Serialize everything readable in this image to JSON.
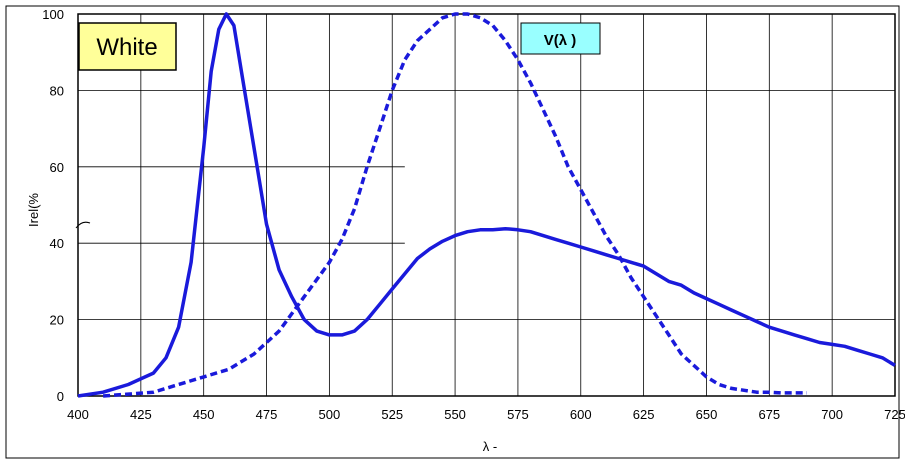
{
  "chart_data": {
    "type": "line",
    "title": "",
    "xlabel": "λ -",
    "ylabel": "Irel(%",
    "xlim": [
      400,
      725
    ],
    "ylim": [
      0,
      100
    ],
    "grid": true,
    "x_ticks": [
      "400",
      "425",
      "450",
      "475",
      "500",
      "525",
      "550",
      "575",
      "600",
      "625",
      "650",
      "675",
      "700",
      "725"
    ],
    "y_ticks": [
      "0",
      "20",
      "40",
      "60",
      "80",
      "100"
    ],
    "annotations": [
      {
        "text": "White",
        "color": "#ffff99"
      },
      {
        "text": "V(λ )",
        "color": "#99ffff"
      }
    ],
    "colors": {
      "line": "#1a1adb",
      "frame": "#000000",
      "grid": "#000000"
    },
    "series": [
      {
        "style": "solid",
        "points": [
          [
            400,
            0
          ],
          [
            410,
            1
          ],
          [
            420,
            3
          ],
          [
            430,
            6
          ],
          [
            435,
            10
          ],
          [
            440,
            18
          ],
          [
            445,
            35
          ],
          [
            450,
            65
          ],
          [
            453,
            85
          ],
          [
            456,
            96
          ],
          [
            459,
            100
          ],
          [
            462,
            97
          ],
          [
            465,
            85
          ],
          [
            470,
            65
          ],
          [
            475,
            45
          ],
          [
            480,
            33
          ],
          [
            485,
            26
          ],
          [
            490,
            20
          ],
          [
            495,
            17
          ],
          [
            500,
            16
          ],
          [
            505,
            16
          ],
          [
            510,
            17
          ],
          [
            515,
            20
          ],
          [
            520,
            24
          ],
          [
            525,
            28
          ],
          [
            530,
            32
          ],
          [
            535,
            36
          ],
          [
            540,
            38.5
          ],
          [
            545,
            40.5
          ],
          [
            550,
            42
          ],
          [
            555,
            43
          ],
          [
            560,
            43.5
          ],
          [
            565,
            43.5
          ],
          [
            570,
            43.8
          ],
          [
            575,
            43.5
          ],
          [
            580,
            43
          ],
          [
            585,
            42
          ],
          [
            590,
            41
          ],
          [
            595,
            40
          ],
          [
            600,
            39
          ],
          [
            605,
            38
          ],
          [
            610,
            37
          ],
          [
            615,
            36
          ],
          [
            620,
            35
          ],
          [
            625,
            34
          ],
          [
            630,
            32
          ],
          [
            635,
            30
          ],
          [
            640,
            29
          ],
          [
            645,
            27
          ],
          [
            650,
            25.5
          ],
          [
            655,
            24
          ],
          [
            660,
            22.5
          ],
          [
            665,
            21
          ],
          [
            670,
            19.5
          ],
          [
            675,
            18
          ],
          [
            680,
            17
          ],
          [
            685,
            16
          ],
          [
            690,
            15
          ],
          [
            695,
            14
          ],
          [
            700,
            13.5
          ],
          [
            705,
            13
          ],
          [
            710,
            12
          ],
          [
            715,
            11
          ],
          [
            720,
            10
          ],
          [
            725,
            8
          ]
        ]
      },
      {
        "style": "dashed",
        "points": [
          [
            410,
            0
          ],
          [
            420,
            0.5
          ],
          [
            430,
            1
          ],
          [
            440,
            3
          ],
          [
            450,
            5
          ],
          [
            460,
            7
          ],
          [
            470,
            11
          ],
          [
            480,
            17
          ],
          [
            490,
            26
          ],
          [
            500,
            35
          ],
          [
            505,
            41
          ],
          [
            510,
            49
          ],
          [
            515,
            60
          ],
          [
            520,
            70
          ],
          [
            525,
            80
          ],
          [
            530,
            88
          ],
          [
            535,
            93
          ],
          [
            540,
            96
          ],
          [
            545,
            99
          ],
          [
            550,
            100
          ],
          [
            555,
            100
          ],
          [
            560,
            99
          ],
          [
            565,
            97
          ],
          [
            570,
            93
          ],
          [
            575,
            88
          ],
          [
            580,
            82
          ],
          [
            585,
            75
          ],
          [
            590,
            68
          ],
          [
            595,
            60
          ],
          [
            600,
            54
          ],
          [
            605,
            48
          ],
          [
            610,
            42
          ],
          [
            615,
            37
          ],
          [
            620,
            31
          ],
          [
            625,
            26
          ],
          [
            630,
            21
          ],
          [
            635,
            16
          ],
          [
            640,
            11
          ],
          [
            645,
            8
          ],
          [
            650,
            5
          ],
          [
            655,
            3
          ],
          [
            660,
            2
          ],
          [
            665,
            1.5
          ],
          [
            670,
            1
          ],
          [
            675,
            1
          ],
          [
            680,
            0.8
          ],
          [
            685,
            0.8
          ],
          [
            690,
            0.8
          ]
        ]
      }
    ]
  }
}
